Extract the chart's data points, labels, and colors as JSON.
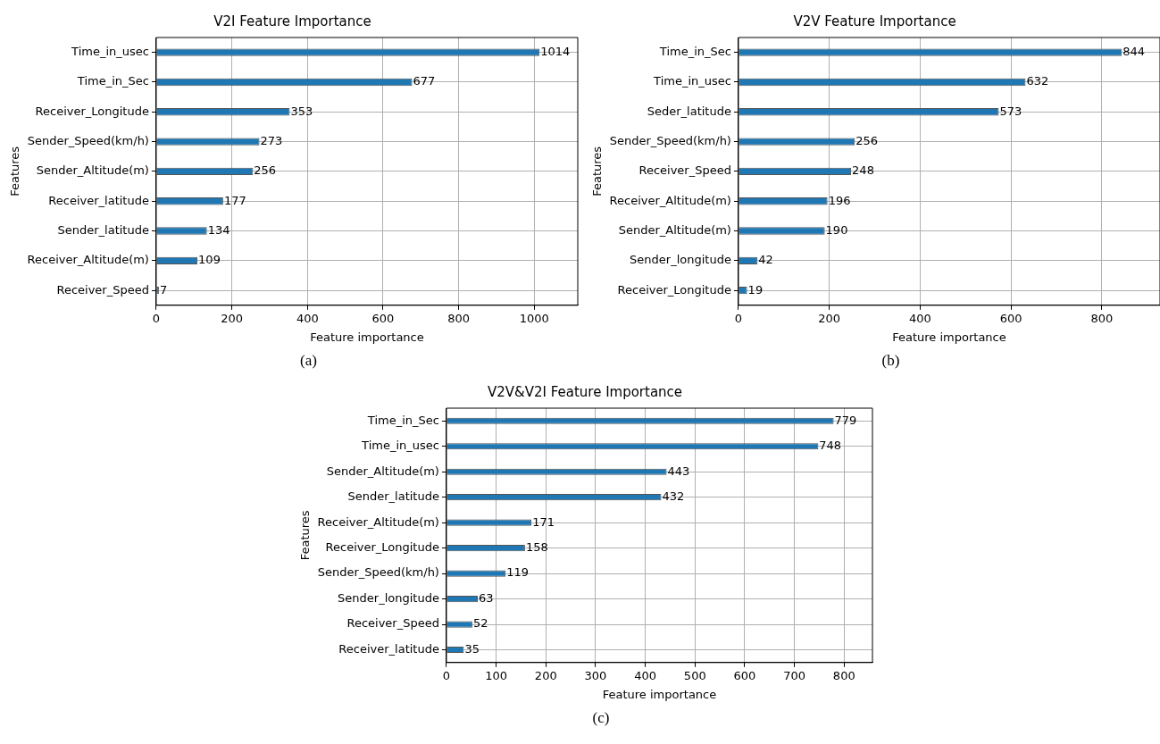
{
  "chart_data": [
    {
      "type": "bar",
      "orientation": "horizontal",
      "title": "V2I Feature Importance",
      "xlabel": "Feature importance",
      "ylabel": "Features",
      "annotations": [
        "(a)"
      ],
      "color": "#1f77b4",
      "data_labels": true,
      "grid": true,
      "categories": [
        "Time_in_usec",
        "Time_in_Sec",
        "Receiver_Longitude",
        "Sender_Speed(km/h)",
        "Sender_Altitude(m)",
        "Receiver_latitude",
        "Sender_latitude",
        "Receiver_Altitude(m)",
        "Receiver_Speed"
      ],
      "values": [
        1014,
        677,
        353,
        273,
        256,
        177,
        134,
        109,
        7
      ],
      "xlim": [
        0,
        1115
      ],
      "xticks": [
        0,
        200,
        400,
        600,
        800,
        1000
      ]
    },
    {
      "type": "bar",
      "orientation": "horizontal",
      "title": "V2V Feature Importance",
      "xlabel": "Feature importance",
      "ylabel": "Features",
      "annotations": [
        "(b)"
      ],
      "color": "#1f77b4",
      "data_labels": true,
      "grid": true,
      "categories": [
        "Time_in_Sec",
        "Time_in_usec",
        "Seder_latitude",
        "Sender_Speed(km/h)",
        "Receiver_Speed",
        "Receiver_Altitude(m)",
        "Sender_Altitude(m)",
        "Sender_longitude",
        "Receiver_Longitude"
      ],
      "values": [
        844,
        632,
        573,
        256,
        248,
        196,
        190,
        42,
        19
      ],
      "xlim": [
        0,
        928
      ],
      "xticks": [
        0,
        200,
        400,
        600,
        800
      ]
    },
    {
      "type": "bar",
      "orientation": "horizontal",
      "title": "V2V&V2I Feature Importance",
      "xlabel": "Feature importance",
      "ylabel": "Features",
      "annotations": [
        "(c)"
      ],
      "color": "#1f77b4",
      "data_labels": true,
      "grid": true,
      "categories": [
        "Time_in_Sec",
        "Time_in_usec",
        "Sender_Altitude(m)",
        "Sender_latitude",
        "Receiver_Altitude(m)",
        "Receiver_Longitude",
        "Sender_Speed(km/h)",
        "Sender_longitude",
        "Receiver_Speed",
        "Receiver_latitude"
      ],
      "values": [
        779,
        748,
        443,
        432,
        171,
        158,
        119,
        63,
        52,
        35
      ],
      "xlim": [
        0,
        857
      ],
      "xticks": [
        0,
        100,
        200,
        300,
        400,
        500,
        600,
        700,
        800
      ]
    }
  ]
}
